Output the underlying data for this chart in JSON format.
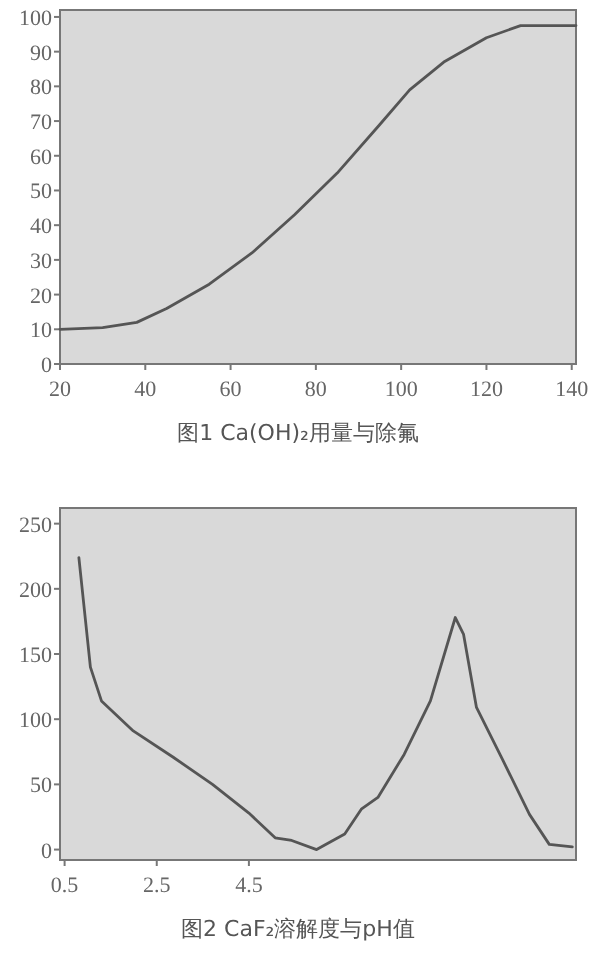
{
  "chart_data": [
    {
      "type": "line",
      "title": "图1 Ca(OH)₂用量与除氟",
      "xlim": [
        20,
        141
      ],
      "ylim": [
        0,
        102
      ],
      "xticks": [
        20,
        40,
        60,
        80,
        100,
        120,
        140
      ],
      "yticks": [
        0,
        10,
        20,
        30,
        40,
        50,
        60,
        70,
        80,
        90,
        100
      ],
      "series": [
        {
          "color": "#555555",
          "x": [
            20,
            30,
            38,
            45,
            55,
            65,
            75,
            85,
            95,
            102,
            110,
            120,
            128,
            141
          ],
          "values": [
            10,
            10.5,
            12,
            16,
            23,
            32,
            43,
            55,
            69,
            79,
            87,
            94,
            97.5,
            97.5
          ]
        }
      ]
    },
    {
      "type": "line",
      "title": "图2 CaF₂溶解度与pH值",
      "xlim": [
        0.4,
        11.6
      ],
      "ylim": [
        -8,
        262
      ],
      "xticks": [
        0.5,
        2.5,
        4.5
      ],
      "yticks": [
        0,
        50,
        100,
        150,
        200,
        250
      ],
      "series": [
        {
          "color": "#555555",
          "x": [
            0.81,
            1.06,
            1.3,
            1.99,
            2.85,
            3.71,
            4.5,
            5.07,
            5.43,
            5.97,
            6.58,
            6.94,
            7.3,
            7.87,
            8.44,
            8.98,
            9.16,
            9.44,
            10.02,
            10.59,
            11.02,
            11.52
          ],
          "values": [
            224,
            140,
            114,
            91,
            71,
            50,
            28,
            9,
            7,
            0,
            12,
            31,
            40,
            73,
            114,
            178,
            165,
            109,
            68,
            27,
            4,
            2
          ]
        }
      ]
    }
  ]
}
